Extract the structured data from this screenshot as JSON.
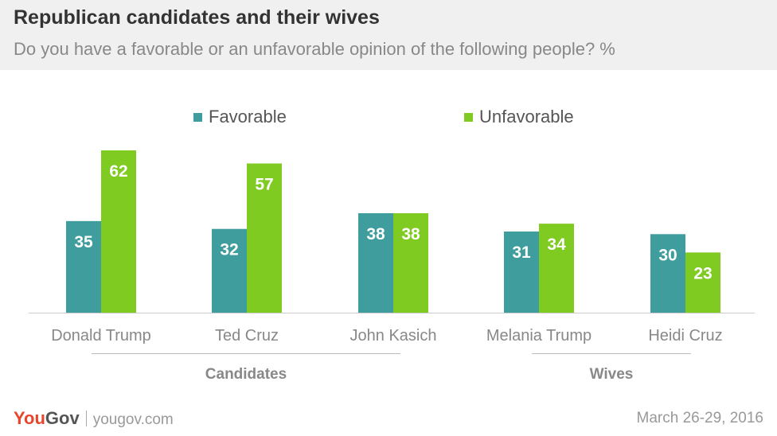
{
  "header": {
    "title": "Republican candidates and their wives",
    "subtitle": "Do you have a favorable or an unfavorable opinion of the following people? %"
  },
  "colors": {
    "favorable": "#3f9d9e",
    "unfavorable": "#7fcb22",
    "header_bg": "#f0f0f0",
    "brand_red": "#e8452c"
  },
  "chart_data": {
    "type": "bar",
    "categories": [
      "Donald Trump",
      "Ted Cruz",
      "John Kasich",
      "Melania Trump",
      "Heidi Cruz"
    ],
    "series": [
      {
        "name": "Favorable",
        "values": [
          35,
          32,
          38,
          31,
          30
        ]
      },
      {
        "name": "Unfavorable",
        "values": [
          62,
          57,
          38,
          34,
          23
        ]
      }
    ],
    "groups": [
      {
        "label": "Candidates",
        "categories": [
          "Donald Trump",
          "Ted Cruz",
          "John Kasich"
        ]
      },
      {
        "label": "Wives",
        "categories": [
          "Melania Trump",
          "Heidi Cruz"
        ]
      }
    ],
    "title": "Republican candidates and their wives",
    "xlabel": "",
    "ylabel": "",
    "ylim": [
      0,
      65
    ],
    "legend": "top-center",
    "grid": false,
    "data_labels": true
  },
  "legend": {
    "favorable_label": "Favorable",
    "unfavorable_label": "Unfavorable"
  },
  "footer": {
    "logo_you": "You",
    "logo_gov": "Gov",
    "url": "yougov.com",
    "date": "March 26-29, 2016"
  }
}
